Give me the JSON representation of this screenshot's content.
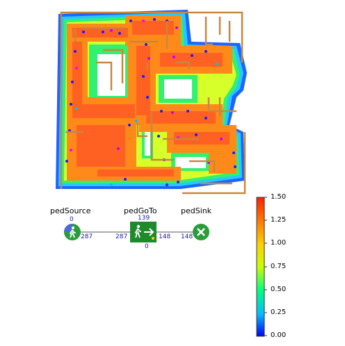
{
  "flowchart": {
    "blocks": [
      {
        "id": "pedSource",
        "label": "pedSource",
        "count_top": "0",
        "count_out": "287"
      },
      {
        "id": "pedGoTo",
        "label": "pedGoTo",
        "count_top": "139",
        "count_in": "287",
        "count_out": "148",
        "count_bottom": "0"
      },
      {
        "id": "pedSink",
        "label": "pedSink",
        "count_in": "148"
      }
    ]
  },
  "legend": {
    "ticks": [
      "1.50",
      "1.25",
      "1.00",
      "0.75",
      "0.50",
      "0.25",
      "0.00"
    ],
    "gradient": [
      "#0000ff",
      "#00bfff",
      "#00ff80",
      "#c8ff00",
      "#ffd000",
      "#ff7a00",
      "#ff2000"
    ]
  },
  "colors": {
    "wall": "#c8873c",
    "node_green": "#2a9d3a",
    "edge": "#555555"
  }
}
